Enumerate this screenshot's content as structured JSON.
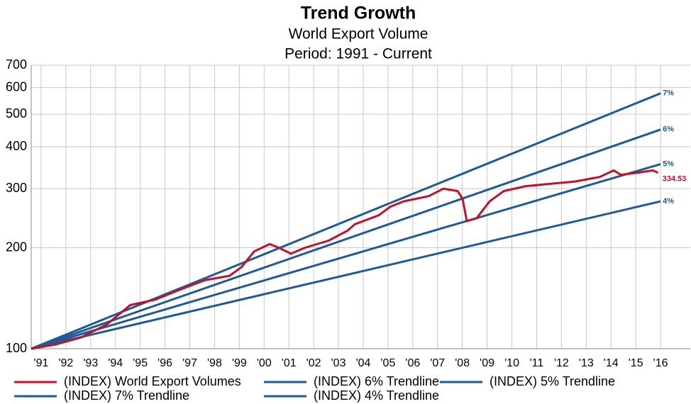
{
  "chart_data": {
    "type": "line",
    "title": "Trend Growth",
    "subtitle": [
      "World Export Volume",
      "Period: 1991 - Current"
    ],
    "log_scale": true,
    "grid": true,
    "xlim": [
      1990.6,
      2017.2
    ],
    "xticks": [
      {
        "value": 1991,
        "label": "'91"
      },
      {
        "value": 1992,
        "label": "'92"
      },
      {
        "value": 1993,
        "label": "'93"
      },
      {
        "value": 1994,
        "label": "'94"
      },
      {
        "value": 1995,
        "label": "'95"
      },
      {
        "value": 1996,
        "label": "'96"
      },
      {
        "value": 1997,
        "label": "'97"
      },
      {
        "value": 1998,
        "label": "'98"
      },
      {
        "value": 1999,
        "label": "'99"
      },
      {
        "value": 2000,
        "label": "'00"
      },
      {
        "value": 2001,
        "label": "'01"
      },
      {
        "value": 2002,
        "label": "'02"
      },
      {
        "value": 2003,
        "label": "'03"
      },
      {
        "value": 2004,
        "label": "'04"
      },
      {
        "value": 2005,
        "label": "'05"
      },
      {
        "value": 2006,
        "label": "'06"
      },
      {
        "value": 2007,
        "label": "'07"
      },
      {
        "value": 2008,
        "label": "'08"
      },
      {
        "value": 2009,
        "label": "'09"
      },
      {
        "value": 2010,
        "label": "'10"
      },
      {
        "value": 2011,
        "label": "'11"
      },
      {
        "value": 2012,
        "label": "'12"
      },
      {
        "value": 2013,
        "label": "'13"
      },
      {
        "value": 2014,
        "label": "'14"
      },
      {
        "value": 2015,
        "label": "'15"
      },
      {
        "value": 2016,
        "label": "'16"
      }
    ],
    "ylim": [
      100,
      700
    ],
    "yticks": [
      100,
      200,
      300,
      400,
      500,
      600,
      700
    ],
    "series": [
      {
        "name": "(INDEX) World Export Volumes",
        "color": "#c0122c",
        "show_last_value": true,
        "x": [
          1990.6,
          1991.6,
          1992.6,
          1993.64,
          1994.6,
          1995.6,
          1996.6,
          1997.6,
          1998.6,
          1999.08,
          1999.6,
          2000.22,
          2000.6,
          2001.08,
          2001.65,
          2002.6,
          2003.37,
          2003.66,
          2004.63,
          2005.09,
          2005.63,
          2006.64,
          2007.24,
          2007.81,
          2008.01,
          2008.18,
          2008.58,
          2009.1,
          2009.67,
          2010.53,
          2011.53,
          2012.54,
          2013.54,
          2014.11,
          2014.4,
          2015.11,
          2015.69,
          2015.9
        ],
        "values": [
          100,
          103,
          108,
          118,
          135,
          140,
          150,
          160,
          165,
          175,
          195,
          205,
          200,
          192,
          200,
          210,
          225,
          235,
          250,
          265,
          275,
          285,
          300,
          295,
          280,
          240,
          245,
          275,
          295,
          305,
          310,
          315,
          325,
          340,
          330,
          335,
          340,
          334.53
        ]
      },
      {
        "name": "(INDEX) 6% Trendline",
        "color": "#1f5a96",
        "end_label": "6%",
        "x": [
          1990.6,
          2016
        ],
        "values": [
          100,
          450
        ]
      },
      {
        "name": "(INDEX) 5% Trendline",
        "color": "#1f5a96",
        "end_label": "5%",
        "x": [
          1990.6,
          2016
        ],
        "values": [
          100,
          355
        ]
      },
      {
        "name": "(INDEX) 7% Trendline",
        "color": "#1f5a96",
        "end_label": "7%",
        "x": [
          1990.6,
          2016
        ],
        "values": [
          100,
          577
        ]
      },
      {
        "name": "(INDEX) 4% Trendline",
        "color": "#1f5a96",
        "end_label": "4%",
        "x": [
          1990.6,
          2016
        ],
        "values": [
          100,
          275
        ]
      }
    ]
  }
}
